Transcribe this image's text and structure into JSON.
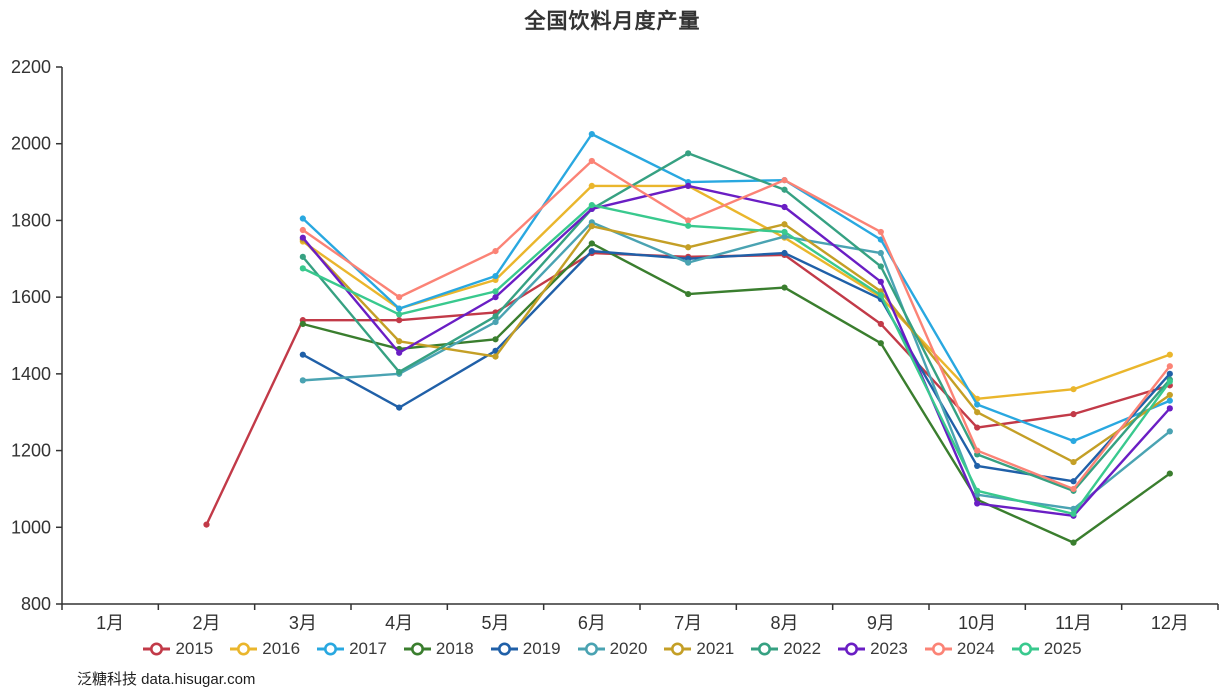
{
  "title": "全国饮料月度产量",
  "source": "泛糖科技 data.hisugar.com",
  "chart_data": {
    "type": "line",
    "title": "全国饮料月度产量",
    "categories": [
      "1月",
      "2月",
      "3月",
      "4月",
      "5月",
      "6月",
      "7月",
      "8月",
      "9月",
      "10月",
      "11月",
      "12月"
    ],
    "xlabel": "",
    "ylabel": "",
    "ylim": [
      800,
      2200
    ],
    "ytick_step": 200,
    "grid": false,
    "legend_position": "bottom",
    "marker": "circle",
    "axis_color": "#333333",
    "label_color": "#333333",
    "series": [
      {
        "name": "2015",
        "color": "#c23a48",
        "values": [
          null,
          1007,
          1540,
          1540,
          1560,
          1715,
          1705,
          1710,
          1530,
          1260,
          1295,
          1370
        ]
      },
      {
        "name": "2016",
        "color": "#eab62c",
        "values": [
          null,
          null,
          1745,
          1570,
          1645,
          1890,
          1890,
          1755,
          1600,
          1335,
          1360,
          1450
        ]
      },
      {
        "name": "2017",
        "color": "#29a8e0",
        "values": [
          null,
          null,
          1805,
          1570,
          1655,
          2025,
          1900,
          1905,
          1750,
          1320,
          1225,
          1330
        ]
      },
      {
        "name": "2018",
        "color": "#3a7e2e",
        "values": [
          null,
          null,
          1530,
          1465,
          1490,
          1740,
          1608,
          1625,
          1480,
          1072,
          960,
          1140
        ]
      },
      {
        "name": "2019",
        "color": "#2060a8",
        "values": [
          null,
          null,
          1450,
          1312,
          1460,
          1720,
          1700,
          1715,
          1595,
          1160,
          1120,
          1400
        ]
      },
      {
        "name": "2020",
        "color": "#4aa3b2",
        "values": [
          null,
          null,
          1383,
          1400,
          1535,
          1795,
          1690,
          1758,
          1715,
          1085,
          1048,
          1250
        ]
      },
      {
        "name": "2021",
        "color": "#c49f26",
        "values": [
          null,
          null,
          1750,
          1485,
          1445,
          1785,
          1730,
          1790,
          1615,
          1300,
          1170,
          1345
        ]
      },
      {
        "name": "2022",
        "color": "#36a182",
        "values": [
          null,
          null,
          1705,
          1405,
          1550,
          1830,
          1975,
          1880,
          1680,
          1190,
          1095,
          1385
        ]
      },
      {
        "name": "2023",
        "color": "#6a1ec4",
        "values": [
          null,
          null,
          1755,
          1455,
          1600,
          1830,
          1890,
          1835,
          1640,
          1062,
          1030,
          1310
        ]
      },
      {
        "name": "2024",
        "color": "#fb8376",
        "values": [
          null,
          null,
          1775,
          1600,
          1720,
          1955,
          1800,
          1905,
          1770,
          1200,
          1100,
          1420
        ]
      },
      {
        "name": "2025",
        "color": "#39c98e",
        "values": [
          null,
          null,
          1675,
          1555,
          1615,
          1840,
          1786,
          1770,
          1605,
          1095,
          1035,
          1380
        ]
      }
    ]
  }
}
